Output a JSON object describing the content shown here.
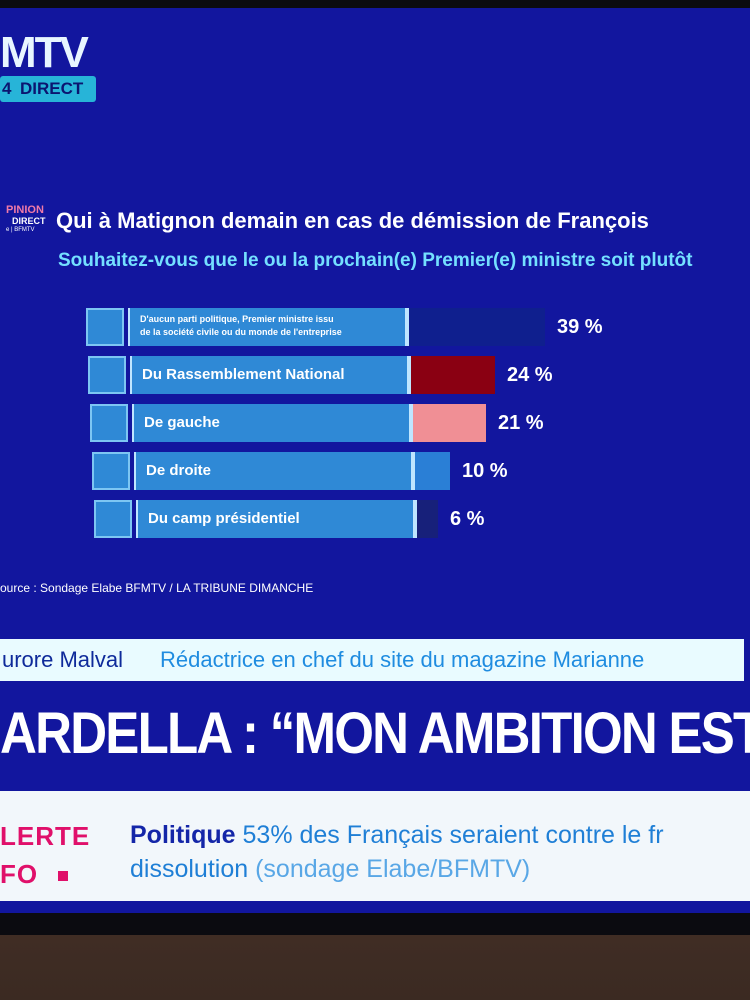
{
  "channel": {
    "logo_text": "MTV",
    "live_number": "4",
    "live_label": "DIRECT"
  },
  "badge": {
    "line1": "PINION",
    "line2": "DIRECT",
    "line3": "e | BFMTV"
  },
  "chart_data": {
    "type": "bar",
    "title": "Qui à Matignon demain en cas de démission de François",
    "subtitle": "Souhaitez-vous que le ou la prochain(e) Premier(e) ministre soit plutôt",
    "categories": [
      "D'aucun parti politique, Premier ministre issu de la société civile ou du monde de l'entreprise",
      "Du Rassemblement National",
      "De gauche",
      "De droite",
      "Du camp présidentiel"
    ],
    "category_lines": [
      [
        "D'aucun parti politique, Premier ministre issu",
        "de la société civile ou du monde de l'entreprise"
      ],
      [
        "Du Rassemblement National"
      ],
      [
        "De gauche"
      ],
      [
        "De droite"
      ],
      [
        "Du camp présidentiel"
      ]
    ],
    "values": [
      39,
      24,
      21,
      10,
      6
    ],
    "value_labels": [
      "39 %",
      "24 %",
      "21 %",
      "10 %",
      "6 %"
    ],
    "bar_colors": [
      "#0f1f8e",
      "#8a0012",
      "#f08f95",
      "#2a7fd6",
      "#17207a"
    ],
    "xlim": [
      0,
      39
    ],
    "source": "ource : Sondage Elabe BFMTV / LA TRIBUNE DIMANCHE"
  },
  "guest": {
    "name": "urore Malval",
    "role": "Rédactrice en chef du site du magazine Marianne"
  },
  "headline": "ARDELLA : “MON AMBITION EST D'Ê",
  "ticker": {
    "alert_line1": "LERTE",
    "alert_line2": "FO",
    "category": "Politique",
    "text_line1": "53% des Français seraient contre le fr",
    "text_line2": "dissolution",
    "text_line2_source": "(sondage Elabe/BFMTV)"
  }
}
